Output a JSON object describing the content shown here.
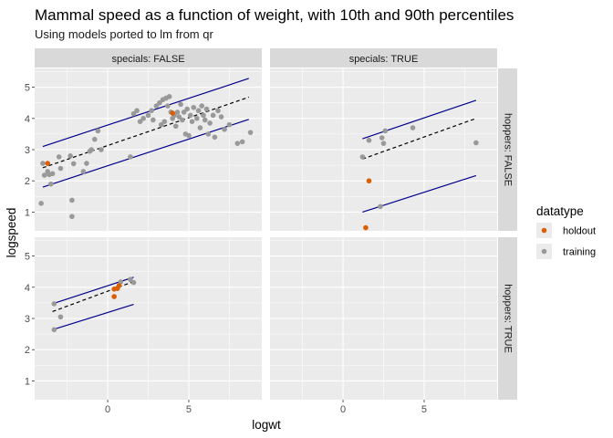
{
  "chart_data": {
    "type": "scatter",
    "title": "Mammal speed as a function of weight, with 10th and 90th percentiles",
    "subtitle": "Using models ported to lm from qr",
    "xlabel": "logwt",
    "ylabel": "logspeed",
    "xlim": [
      -4.5,
      9.5
    ],
    "ylim": [
      0.4,
      5.6
    ],
    "x_ticks": [
      0,
      5
    ],
    "y_ticks": [
      1,
      2,
      3,
      4,
      5
    ],
    "grid": true,
    "legend": {
      "title": "datatype",
      "position": "right",
      "entries": [
        {
          "label": "holdout",
          "color": "#d95f02"
        },
        {
          "label": "training",
          "color": "#999999"
        }
      ]
    },
    "colors": {
      "panel_bg": "#ebebeb",
      "grid": "#ffffff",
      "strip_bg": "#d9d9d9",
      "line_color": "#00008b",
      "median_color": "#000000"
    },
    "col_strips": [
      "specials: FALSE",
      "specials: TRUE"
    ],
    "row_strips": [
      "hoppers: FALSE",
      "hoppers: TRUE"
    ],
    "panels": [
      {
        "row": 0,
        "col": 0,
        "training": [
          [
            -4.1,
            1.28
          ],
          [
            -4.0,
            2.56
          ],
          [
            -3.9,
            2.18
          ],
          [
            -3.7,
            2.3
          ],
          [
            -3.6,
            2.2
          ],
          [
            -3.5,
            1.9
          ],
          [
            -3.4,
            2.23
          ],
          [
            -3.0,
            2.77
          ],
          [
            -2.9,
            2.4
          ],
          [
            -2.3,
            2.8
          ],
          [
            -2.2,
            1.38
          ],
          [
            -2.2,
            0.86
          ],
          [
            -2.1,
            2.55
          ],
          [
            -1.5,
            2.3
          ],
          [
            -1.3,
            2.56
          ],
          [
            -1.1,
            2.95
          ],
          [
            -1.0,
            3.0
          ],
          [
            -0.8,
            3.33
          ],
          [
            -0.6,
            3.6
          ],
          [
            -0.4,
            3.0
          ],
          [
            1.4,
            2.77
          ],
          [
            1.6,
            4.15
          ],
          [
            1.8,
            4.25
          ],
          [
            2.0,
            3.9
          ],
          [
            2.2,
            4.0
          ],
          [
            2.5,
            4.1
          ],
          [
            2.7,
            4.25
          ],
          [
            2.8,
            3.95
          ],
          [
            3.0,
            4.4
          ],
          [
            3.2,
            4.5
          ],
          [
            3.3,
            3.8
          ],
          [
            3.4,
            4.6
          ],
          [
            3.5,
            3.9
          ],
          [
            3.6,
            4.65
          ],
          [
            3.7,
            4.4
          ],
          [
            3.8,
            4.7
          ],
          [
            3.9,
            4.2
          ],
          [
            4.0,
            4.0
          ],
          [
            4.1,
            4.1
          ],
          [
            4.2,
            3.75
          ],
          [
            4.3,
            4.2
          ],
          [
            4.4,
            4.05
          ],
          [
            4.5,
            4.45
          ],
          [
            4.6,
            3.95
          ],
          [
            4.7,
            4.2
          ],
          [
            4.8,
            3.5
          ],
          [
            4.9,
            4.3
          ],
          [
            5.0,
            3.45
          ],
          [
            5.1,
            4.1
          ],
          [
            5.2,
            3.9
          ],
          [
            5.3,
            4.35
          ],
          [
            5.5,
            4.0
          ],
          [
            5.6,
            4.25
          ],
          [
            5.7,
            3.7
          ],
          [
            5.8,
            4.4
          ],
          [
            5.9,
            4.1
          ],
          [
            6.0,
            3.95
          ],
          [
            6.1,
            4.3
          ],
          [
            6.2,
            3.5
          ],
          [
            6.3,
            3.85
          ],
          [
            6.5,
            4.1
          ],
          [
            6.6,
            3.4
          ],
          [
            6.8,
            4.25
          ],
          [
            7.0,
            4.05
          ],
          [
            7.2,
            3.65
          ],
          [
            7.5,
            3.8
          ],
          [
            8.0,
            3.2
          ],
          [
            8.3,
            3.25
          ],
          [
            8.8,
            3.55
          ]
        ],
        "holdout": [
          [
            -3.7,
            2.56
          ],
          [
            4.0,
            4.17
          ]
        ],
        "lines": {
          "p10": {
            "x": [
              -4.0,
              8.7
            ],
            "y": [
              1.8,
              3.97
            ]
          },
          "median": {
            "x": [
              -4.0,
              8.7
            ],
            "y": [
              2.42,
              4.68
            ]
          },
          "p90": {
            "x": [
              -4.0,
              8.7
            ],
            "y": [
              3.1,
              5.28
            ]
          }
        }
      },
      {
        "row": 0,
        "col": 1,
        "training": [
          [
            1.2,
            2.77
          ],
          [
            1.6,
            3.3
          ],
          [
            2.3,
            1.18
          ],
          [
            2.4,
            3.38
          ],
          [
            2.5,
            3.2
          ],
          [
            2.6,
            3.6
          ],
          [
            4.3,
            3.7
          ],
          [
            8.2,
            3.22
          ]
        ],
        "holdout": [
          [
            1.4,
            0.5
          ],
          [
            1.6,
            2.0
          ]
        ],
        "lines": {
          "p10": {
            "x": [
              1.2,
              8.2
            ],
            "y": [
              1.0,
              2.17
            ]
          },
          "median": {
            "x": [
              1.2,
              8.2
            ],
            "y": [
              2.7,
              4.0
            ]
          },
          "p90": {
            "x": [
              1.2,
              8.2
            ],
            "y": [
              3.35,
              4.58
            ]
          }
        }
      },
      {
        "row": 1,
        "col": 0,
        "training": [
          [
            -3.3,
            3.47
          ],
          [
            -3.3,
            2.64
          ],
          [
            -2.9,
            3.05
          ],
          [
            0.8,
            4.17
          ],
          [
            1.4,
            4.25
          ],
          [
            1.6,
            4.15
          ]
        ],
        "holdout": [
          [
            0.4,
            3.7
          ],
          [
            0.4,
            3.94
          ],
          [
            0.6,
            3.96
          ],
          [
            0.7,
            4.05
          ]
        ],
        "lines": {
          "p10": {
            "x": [
              -3.4,
              1.6
            ],
            "y": [
              2.64,
              3.45
            ]
          },
          "median": {
            "x": [
              -3.4,
              1.6
            ],
            "y": [
              3.22,
              4.18
            ]
          },
          "p90": {
            "x": [
              -3.4,
              1.6
            ],
            "y": [
              3.47,
              4.32
            ]
          }
        }
      },
      {
        "row": 1,
        "col": 1,
        "training": [],
        "holdout": [],
        "lines": null
      }
    ]
  }
}
